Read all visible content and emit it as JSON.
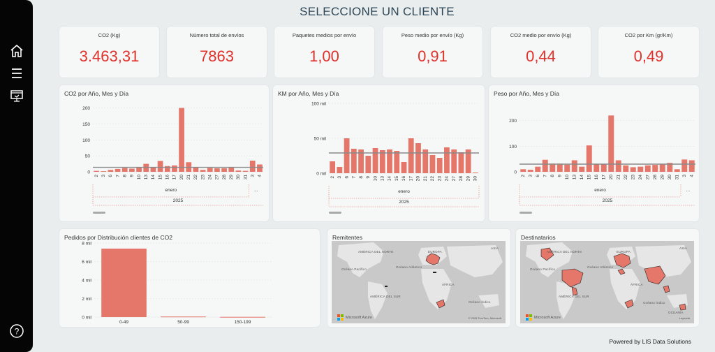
{
  "title": "SELECCIONE UN CLIENTE",
  "kpis": [
    {
      "label": "CO2 (Kg)",
      "value": "3.463,31"
    },
    {
      "label": "Número total de envíos",
      "value": "7863"
    },
    {
      "label": "Paquetes medios por envío",
      "value": "1,00"
    },
    {
      "label": "Peso medio por envío (Kg)",
      "value": "0,91"
    },
    {
      "label": "CO2 medio por envío (Kg)",
      "value": "0,44"
    },
    {
      "label": "CO2 por Km (gr/Km)",
      "value": "0,49"
    }
  ],
  "colors": {
    "accent": "#e0322a",
    "bar": "#e5776a",
    "avg_line": "#8a8a8a"
  },
  "icons": [
    "home-icon",
    "menu-icon",
    "report-icon",
    "help-icon"
  ],
  "chart_data": [
    {
      "type": "bar",
      "title": "CO2 por Año, Mes y Día",
      "categories": [
        "2",
        "3",
        "6",
        "7",
        "8",
        "9",
        "10",
        "13",
        "14",
        "15",
        "16",
        "17",
        "20",
        "21",
        "22",
        "23",
        "24",
        "27",
        "28",
        "29",
        "30",
        "31",
        "3",
        "4"
      ],
      "values": [
        3,
        2,
        6,
        9,
        12,
        10,
        13,
        25,
        15,
        34,
        18,
        20,
        200,
        30,
        14,
        6,
        12,
        11,
        11,
        13,
        4,
        3,
        35,
        23
      ],
      "yticks": [
        "0",
        "50",
        "100",
        "150",
        "200"
      ],
      "ylim": [
        0,
        210
      ],
      "average": 14,
      "group_label_1": "enero",
      "group_label_2": "2025",
      "ellipsis": "..."
    },
    {
      "type": "bar",
      "title": "KM por Año, Mes y Día",
      "categories": [
        "2",
        "3",
        "6",
        "7",
        "8",
        "9",
        "10",
        "13",
        "14",
        "15",
        "16",
        "17",
        "20",
        "21",
        "22",
        "23",
        "24",
        "27",
        "28",
        "29",
        "30"
      ],
      "values": [
        17,
        9,
        50,
        35,
        34,
        25,
        36,
        33,
        34,
        32,
        16,
        50,
        43,
        34,
        26,
        22,
        37,
        34,
        30,
        34,
        1
      ],
      "yticks": [
        "0 mil",
        "50 mil",
        "100 mil"
      ],
      "ylim": [
        0,
        100
      ],
      "average": 29,
      "group_label_1": "enero",
      "group_label_2": "2025"
    },
    {
      "type": "bar",
      "title": "Peso por Año, Mes y Día",
      "categories": [
        "2",
        "3",
        "6",
        "7",
        "8",
        "9",
        "10",
        "13",
        "14",
        "15",
        "16",
        "17",
        "20",
        "21",
        "22",
        "23",
        "24",
        "27",
        "28",
        "29",
        "30",
        "31",
        "3",
        "4"
      ],
      "values": [
        10,
        8,
        20,
        47,
        32,
        32,
        28,
        45,
        20,
        103,
        30,
        30,
        220,
        45,
        25,
        18,
        20,
        25,
        27,
        30,
        35,
        10,
        48,
        45
      ],
      "yticks": [
        "0",
        "100",
        "200"
      ],
      "ylim": [
        0,
        240
      ],
      "average": 30,
      "group_label_1": "enero",
      "group_label_2": "2025",
      "ellipsis": "..."
    },
    {
      "type": "bar",
      "title": "Pedidos por Distribución clientes de CO2",
      "categories": [
        "0-49",
        "50-99",
        "150-199"
      ],
      "values": [
        7400,
        60,
        20
      ],
      "yticks": [
        "0 mil",
        "2 mil",
        "4 mil",
        "6 mil",
        "8 mil"
      ],
      "ylim": [
        0,
        8000
      ]
    }
  ],
  "maps": {
    "senders": {
      "title": "Remitentes",
      "labels": [
        "AMÉRICA DEL NORTE",
        "EUROPA",
        "ASIA",
        "Océano Pacífico",
        "Océano Atlántico",
        "ÁFRICA",
        "AMÉRICA DEL SUR",
        "Océano Índico"
      ],
      "brand": "Microsoft Azure",
      "credit": "© 2025 TomTom, Microsoft"
    },
    "recipients": {
      "title": "Destinatarios",
      "labels": [
        "AMÉRICA DEL NORTE",
        "EUROPA",
        "ASIA",
        "Océano Pacífico",
        "Océano Atlántico",
        "ÁFRICA",
        "AMÉRICA DEL SUR",
        "Océano Índico",
        "OCEANÍA"
      ],
      "brand": "Microsoft Azure",
      "credit": "Leyenda"
    }
  },
  "footer": "Powered by LIS Data Solutions"
}
